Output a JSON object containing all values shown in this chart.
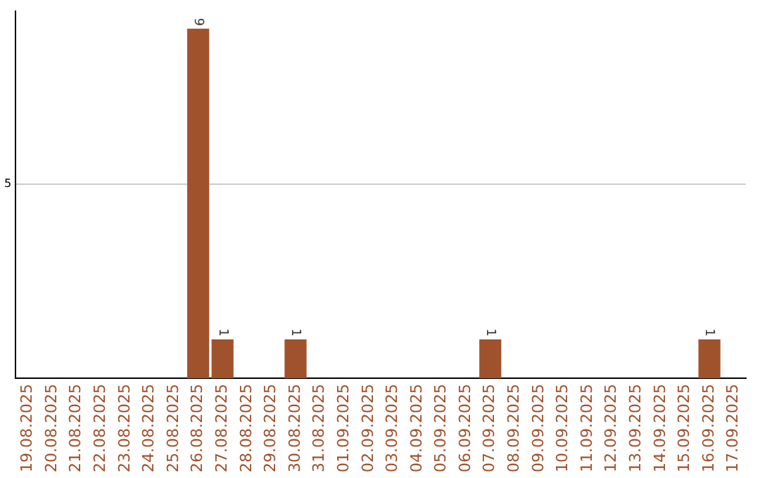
{
  "chart_data": {
    "type": "bar",
    "categories": [
      "19.08.2025",
      "20.08.2025",
      "21.08.2025",
      "22.08.2025",
      "23.08.2025",
      "24.08.2025",
      "25.08.2025",
      "26.08.2025",
      "27.08.2025",
      "28.08.2025",
      "29.08.2025",
      "30.08.2025",
      "31.08.2025",
      "01.09.2025",
      "02.09.2025",
      "03.09.2025",
      "04.09.2025",
      "05.09.2025",
      "06.09.2025",
      "07.09.2025",
      "08.09.2025",
      "09.09.2025",
      "10.09.2025",
      "11.09.2025",
      "12.09.2025",
      "13.09.2025",
      "14.09.2025",
      "15.09.2025",
      "16.09.2025",
      "17.09.2025"
    ],
    "values": [
      0,
      0,
      0,
      0,
      0,
      0,
      0,
      9,
      1,
      0,
      0,
      1,
      0,
      0,
      0,
      0,
      0,
      0,
      0,
      1,
      0,
      0,
      0,
      0,
      0,
      0,
      0,
      0,
      1,
      0
    ],
    "value_labels": [
      null,
      null,
      null,
      null,
      null,
      null,
      null,
      "9",
      "1",
      null,
      null,
      "1",
      null,
      null,
      null,
      null,
      null,
      null,
      null,
      "1",
      null,
      null,
      null,
      null,
      null,
      null,
      null,
      null,
      "1",
      null
    ],
    "color": "#a0522d",
    "ylim": [
      0,
      9.45
    ],
    "yticks": [
      5
    ],
    "grid": "y",
    "legend": false
  }
}
